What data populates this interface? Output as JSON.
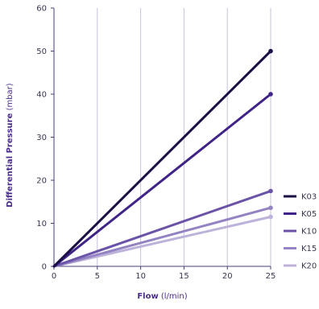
{
  "chart_data": {
    "type": "line",
    "xlabel_bold": "Flow",
    "xlabel_unit": " (l/min)",
    "ylabel_bold": "Differential Pressure",
    "ylabel_unit": " (mbar)",
    "xlim": [
      0,
      25
    ],
    "ylim": [
      0,
      60
    ],
    "xticks": [
      "0",
      "5",
      "10",
      "15",
      "20",
      "25"
    ],
    "yticks": [
      "0",
      "10",
      "20",
      "30",
      "40",
      "50",
      "60"
    ],
    "grid": "vertical",
    "legend_position": "right",
    "series": [
      {
        "name": "K03",
        "color": "#1c0f45",
        "x": [
          0,
          25
        ],
        "y": [
          0,
          50
        ]
      },
      {
        "name": "K05",
        "color": "#3f2386",
        "x": [
          0,
          25
        ],
        "y": [
          0,
          40
        ]
      },
      {
        "name": "K10",
        "color": "#6b53a8",
        "x": [
          0,
          25
        ],
        "y": [
          0,
          17.5
        ]
      },
      {
        "name": "K15",
        "color": "#9483c2",
        "x": [
          0,
          25
        ],
        "y": [
          0,
          13.6
        ]
      },
      {
        "name": "K20",
        "color": "#bcb2da",
        "x": [
          0,
          25
        ],
        "y": [
          0,
          11.5
        ]
      }
    ]
  }
}
